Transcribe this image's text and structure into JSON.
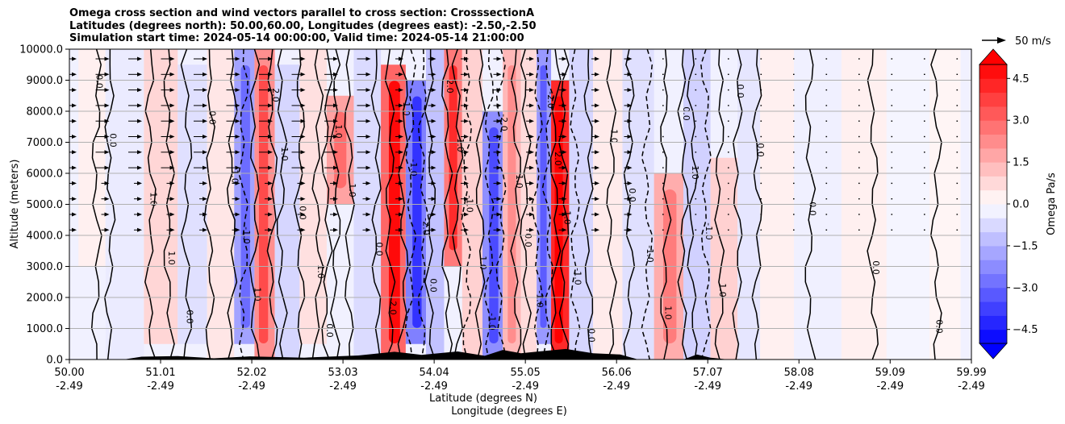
{
  "title_lines": [
    "Omega cross section and wind vectors parallel to cross section: CrosssectionA",
    "Latitudes (degrees north): 50.00,60.00, Longitudes (degrees east): -2.50,-2.50",
    "Simulation start time: 2024-05-14 00:00:00, Valid time: 2024-05-14 21:00:00"
  ],
  "chart_data": {
    "type": "heatmap",
    "ylabel": "Altitude (meters)",
    "xlabel_lines": [
      "Latitude (degrees N)",
      "Longitude (degrees E)"
    ],
    "ylim": [
      0,
      10000
    ],
    "yticks": [
      "0.0",
      "1000.0",
      "2000.0",
      "3000.0",
      "4000.0",
      "5000.0",
      "6000.0",
      "7000.0",
      "8000.0",
      "9000.0",
      "10000.0"
    ],
    "y_values": [
      0,
      1000,
      2000,
      3000,
      4000,
      5000,
      6000,
      7000,
      8000,
      9000,
      10000
    ],
    "xticks_lat": [
      "50.00",
      "51.01",
      "52.02",
      "53.03",
      "54.04",
      "55.05",
      "56.06",
      "57.07",
      "58.08",
      "59.09",
      "59.99"
    ],
    "xticks_lon": [
      "-2.49",
      "-2.49",
      "-2.49",
      "-2.49",
      "-2.49",
      "-2.49",
      "-2.49",
      "-2.49",
      "-2.49",
      "-2.49",
      "-2.49"
    ],
    "x_values": [
      50.0,
      51.01,
      52.02,
      53.03,
      54.04,
      55.05,
      56.06,
      57.07,
      58.08,
      59.09,
      59.99
    ],
    "xlim": [
      50.0,
      59.99
    ],
    "grid": "horizontal",
    "colorbar": {
      "label": "Omega Pa/s",
      "range": [
        -5.0,
        5.0
      ],
      "ticks": [
        "4.5",
        "3.0",
        "1.5",
        "0.0",
        "−1.5",
        "−3.0",
        "−4.5"
      ],
      "tick_values": [
        4.5,
        3.0,
        1.5,
        0.0,
        -1.5,
        -3.0,
        -4.5
      ],
      "extend": "both",
      "colormap": "bwr",
      "colors": {
        "low": "#0000ff",
        "mid": "#ffffff",
        "high": "#ff0000"
      }
    },
    "vector_key": {
      "label": "50 m/s"
    },
    "columns": [
      {
        "lat": 50.2,
        "omega": 0.3,
        "top": 10000,
        "bottom": 3000
      },
      {
        "lat": 50.6,
        "omega": -0.4,
        "top": 10000,
        "bottom": 0
      },
      {
        "lat": 51.05,
        "omega": 0.8,
        "top": 10000,
        "bottom": 500
      },
      {
        "lat": 51.35,
        "omega": -0.6,
        "top": 9500,
        "bottom": 500
      },
      {
        "lat": 51.7,
        "omega": 0.5,
        "top": 10000,
        "bottom": 0
      },
      {
        "lat": 51.95,
        "omega": -1.8,
        "top": 10000,
        "bottom": 500
      },
      {
        "lat": 52.15,
        "omega": 2.2,
        "top": 10000,
        "bottom": 0
      },
      {
        "lat": 52.4,
        "omega": -0.8,
        "top": 9500,
        "bottom": 0
      },
      {
        "lat": 52.7,
        "omega": 0.6,
        "top": 10000,
        "bottom": 500
      },
      {
        "lat": 53.0,
        "omega": 1.8,
        "top": 8500,
        "bottom": 5000
      },
      {
        "lat": 53.3,
        "omega": -0.7,
        "top": 10000,
        "bottom": 0
      },
      {
        "lat": 53.6,
        "omega": 3.0,
        "top": 9500,
        "bottom": 0
      },
      {
        "lat": 53.85,
        "omega": -2.5,
        "top": 9000,
        "bottom": 500
      },
      {
        "lat": 54.05,
        "omega": -1.2,
        "top": 10000,
        "bottom": 0
      },
      {
        "lat": 54.25,
        "omega": 2.6,
        "top": 10000,
        "bottom": 3000
      },
      {
        "lat": 54.45,
        "omega": 0.9,
        "top": 10000,
        "bottom": 0
      },
      {
        "lat": 54.7,
        "omega": -2.2,
        "top": 8000,
        "bottom": 0
      },
      {
        "lat": 54.9,
        "omega": 1.4,
        "top": 10000,
        "bottom": 0
      },
      {
        "lat": 55.1,
        "omega": 0.7,
        "top": 10000,
        "bottom": 0
      },
      {
        "lat": 55.25,
        "omega": -2.0,
        "top": 10000,
        "bottom": 500
      },
      {
        "lat": 55.42,
        "omega": 4.2,
        "top": 9000,
        "bottom": 0
      },
      {
        "lat": 55.65,
        "omega": -0.8,
        "top": 10000,
        "bottom": 0
      },
      {
        "lat": 55.95,
        "omega": 0.4,
        "top": 10000,
        "bottom": 0
      },
      {
        "lat": 56.3,
        "omega": -0.6,
        "top": 10000,
        "bottom": 0
      },
      {
        "lat": 56.65,
        "omega": 1.6,
        "top": 6000,
        "bottom": 0
      },
      {
        "lat": 56.95,
        "omega": -0.9,
        "top": 10000,
        "bottom": 0
      },
      {
        "lat": 57.25,
        "omega": 0.9,
        "top": 6500,
        "bottom": 0
      },
      {
        "lat": 57.55,
        "omega": -0.5,
        "top": 10000,
        "bottom": 0
      },
      {
        "lat": 57.75,
        "omega": 0.3,
        "top": 10000,
        "bottom": 0
      },
      {
        "lat": 58.3,
        "omega": -0.3,
        "top": 10000,
        "bottom": 0
      },
      {
        "lat": 58.8,
        "omega": 0.3,
        "top": 10000,
        "bottom": 0
      },
      {
        "lat": 59.3,
        "omega": -0.2,
        "top": 10000,
        "bottom": 0
      },
      {
        "lat": 59.75,
        "omega": 0.2,
        "top": 10000,
        "bottom": 0
      }
    ],
    "contours": [
      {
        "lat": 50.3,
        "level": "0.0"
      },
      {
        "lat": 50.45,
        "level": "0.0"
      },
      {
        "lat": 50.9,
        "level": "1.0"
      },
      {
        "lat": 51.1,
        "level": "1.0"
      },
      {
        "lat": 51.3,
        "level": "0.0"
      },
      {
        "lat": 51.55,
        "level": "0.0"
      },
      {
        "lat": 51.8,
        "level": "1.0"
      },
      {
        "lat": 51.93,
        "level": "-1.0",
        "dashed": true
      },
      {
        "lat": 52.05,
        "level": "1.0"
      },
      {
        "lat": 52.25,
        "level": "2.0"
      },
      {
        "lat": 52.35,
        "level": "1.0"
      },
      {
        "lat": 52.55,
        "level": "0.0"
      },
      {
        "lat": 52.75,
        "level": "1.0"
      },
      {
        "lat": 52.85,
        "level": "0.0"
      },
      {
        "lat": 52.95,
        "level": "1.0"
      },
      {
        "lat": 53.1,
        "level": "1.0"
      },
      {
        "lat": 53.4,
        "level": "0.0"
      },
      {
        "lat": 53.55,
        "level": "2.0"
      },
      {
        "lat": 53.7,
        "level": "1.0"
      },
      {
        "lat": 53.78,
        "level": "-1.0",
        "dashed": true
      },
      {
        "lat": 53.92,
        "level": "-2.0",
        "dashed": true
      },
      {
        "lat": 54.0,
        "level": "0.0"
      },
      {
        "lat": 54.18,
        "level": "2.0"
      },
      {
        "lat": 54.3,
        "level": "1.0"
      },
      {
        "lat": 54.4,
        "level": "-1.0",
        "dashed": true
      },
      {
        "lat": 54.55,
        "level": "1.0"
      },
      {
        "lat": 54.65,
        "level": "-1.0",
        "dashed": true
      },
      {
        "lat": 54.78,
        "level": "-2.0",
        "dashed": true
      },
      {
        "lat": 54.95,
        "level": "1.0"
      },
      {
        "lat": 55.05,
        "level": "0.0"
      },
      {
        "lat": 55.18,
        "level": "-1.0",
        "dashed": true
      },
      {
        "lat": 55.3,
        "level": "-2.0",
        "dashed": true
      },
      {
        "lat": 55.38,
        "level": "2.0"
      },
      {
        "lat": 55.48,
        "level": "1.0"
      },
      {
        "lat": 55.6,
        "level": "-1.0",
        "dashed": true
      },
      {
        "lat": 55.75,
        "level": "0.0"
      },
      {
        "lat": 56.0,
        "level": "1.0"
      },
      {
        "lat": 56.2,
        "level": "0.0"
      },
      {
        "lat": 56.4,
        "level": "-1.0",
        "dashed": true
      },
      {
        "lat": 56.6,
        "level": "1.0"
      },
      {
        "lat": 56.8,
        "level": "0.0"
      },
      {
        "lat": 56.9,
        "level": "1.0"
      },
      {
        "lat": 57.05,
        "level": "-1.0",
        "dashed": true
      },
      {
        "lat": 57.2,
        "level": "1.0"
      },
      {
        "lat": 57.4,
        "level": "0.0"
      },
      {
        "lat": 57.62,
        "level": "0.0"
      },
      {
        "lat": 58.2,
        "level": "0.0"
      },
      {
        "lat": 58.9,
        "level": "0.0"
      },
      {
        "lat": 59.6,
        "level": "0.0"
      }
    ]
  }
}
